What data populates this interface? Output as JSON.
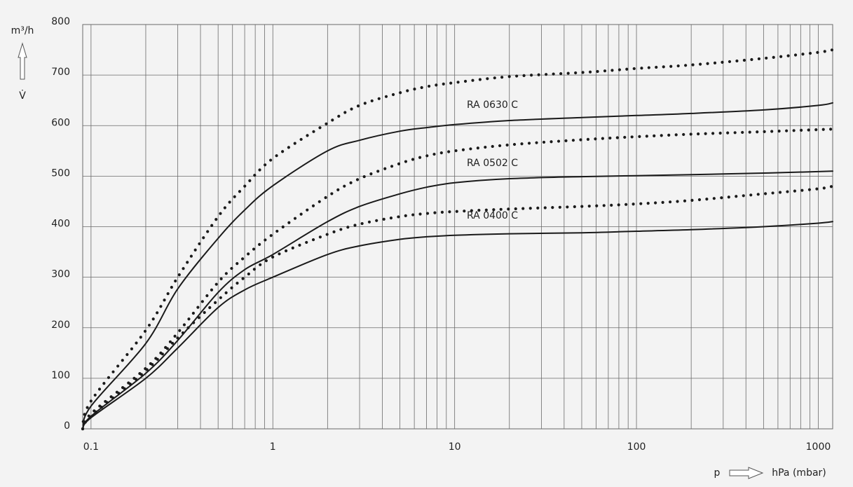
{
  "chart_data": {
    "type": "line",
    "y_label": "m³/h",
    "y_symbol": "V̇",
    "x_symbol": "p",
    "x_unit": "hPa (mbar)",
    "log_x": true,
    "grid": true,
    "xlim": [
      0.09,
      1200
    ],
    "ylim": [
      0,
      800
    ],
    "xticks": [
      0.1,
      1,
      10,
      100,
      1000
    ],
    "xminor_ticks": [
      0.2,
      0.3,
      0.4,
      0.5,
      0.6,
      0.7,
      0.8,
      0.9,
      2,
      3,
      4,
      5,
      6,
      7,
      8,
      9,
      20,
      30,
      40,
      50,
      60,
      70,
      80,
      90,
      200,
      300,
      400,
      500,
      600,
      700,
      800,
      900
    ],
    "yticks": [
      0,
      100,
      200,
      300,
      400,
      500,
      600,
      700,
      800
    ],
    "x": [
      0.09,
      0.1,
      0.2,
      0.3,
      0.5,
      0.7,
      1,
      2,
      3,
      5,
      7,
      10,
      20,
      50,
      100,
      200,
      500,
      1000,
      1200
    ],
    "series": [
      {
        "name": "RA 0630 C",
        "color": "#1a1a1a",
        "style": "solid",
        "values": [
          0,
          45,
          169,
          277,
          377,
          433,
          481,
          550,
          571,
          589,
          596,
          602,
          610,
          616,
          620,
          624,
          631,
          640,
          645
        ]
      },
      {
        "color": "#1a1a1a",
        "style": "dotted",
        "values": [
          0,
          55,
          195,
          300,
          420,
          480,
          535,
          605,
          640,
          665,
          677,
          685,
          697,
          705,
          713,
          720,
          733,
          745,
          750
        ]
      },
      {
        "name": "RA 0502 C",
        "color": "#1a1a1a",
        "style": "solid",
        "values": [
          0,
          25,
          110,
          175,
          270,
          315,
          345,
          410,
          440,
          465,
          478,
          487,
          495,
          499,
          501,
          503,
          506,
          509,
          510
        ]
      },
      {
        "color": "#1a1a1a",
        "style": "dotted",
        "values": [
          0,
          30,
          120,
          190,
          290,
          340,
          385,
          460,
          495,
          525,
          540,
          550,
          562,
          572,
          578,
          583,
          588,
          592,
          593
        ]
      },
      {
        "name": "RA 0400 C",
        "color": "#1a1a1a",
        "style": "solid",
        "values": [
          0,
          22,
          100,
          160,
          240,
          275,
          300,
          345,
          362,
          375,
          380,
          383,
          386,
          388,
          391,
          394,
          400,
          407,
          410
        ]
      },
      {
        "color": "#1a1a1a",
        "style": "dotted",
        "values": [
          0,
          25,
          115,
          180,
          255,
          300,
          340,
          385,
          405,
          420,
          426,
          430,
          435,
          440,
          445,
          452,
          465,
          475,
          480
        ]
      }
    ]
  }
}
